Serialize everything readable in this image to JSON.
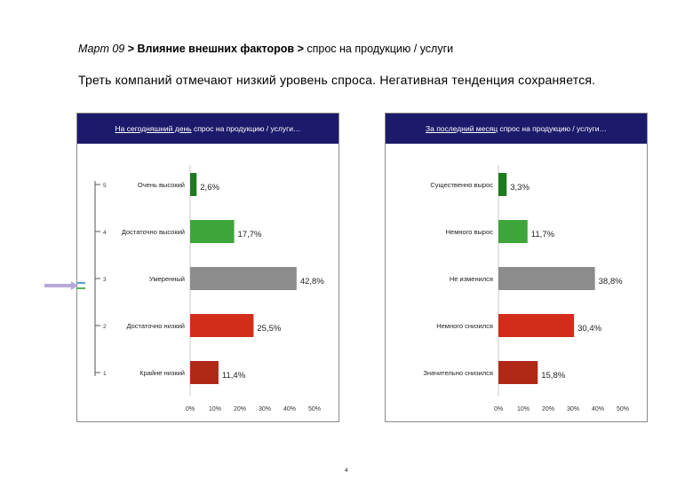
{
  "header": {
    "crumb_date": "Март 09",
    "crumb_sep1": ">",
    "crumb_section": "Влияние внешних факторов",
    "crumb_sep2": ">",
    "crumb_topic": "спрос на продукцию / услуги",
    "subtitle": "Треть компаний отмечают низкий уровень спроса. Негативная тенденция сохраняется."
  },
  "page_number": "4",
  "chart_data": [
    {
      "type": "bar",
      "orientation": "horizontal",
      "title_underlined": "На сегодняшний день",
      "title_rest": " спрос на продукцию / услуги…",
      "categories": [
        "Очень высокий",
        "Достаточно высокий",
        "Умеренный",
        "Достаточно низкий",
        "Крайне низкий"
      ],
      "scale_labels": [
        "5",
        "4",
        "3",
        "2",
        "1"
      ],
      "values": [
        2.6,
        17.7,
        42.8,
        25.5,
        11.4
      ],
      "value_labels": [
        "2,6%",
        "17,7%",
        "42,8%",
        "25,5%",
        "11,4%"
      ],
      "colors": [
        "#1e7a1e",
        "#3ea53a",
        "#8c8c8c",
        "#d22d1a",
        "#b02816"
      ],
      "xlim": [
        0,
        50
      ],
      "xticks": [
        "0%",
        "10%",
        "20%",
        "30%",
        "40%",
        "50%"
      ],
      "grid": false
    },
    {
      "type": "bar",
      "orientation": "horizontal",
      "title_underlined": "За последний месяц",
      "title_rest": " спрос на продукцию / услуги…",
      "categories": [
        "Существенно вырос",
        "Немного вырос",
        "Не изменился",
        "Немного снизился",
        "Значительно снизился"
      ],
      "values": [
        3.3,
        11.7,
        38.8,
        30.4,
        15.8
      ],
      "value_labels": [
        "3,3%",
        "11,7%",
        "38,8%",
        "30,4%",
        "15,8%"
      ],
      "colors": [
        "#1e7a1e",
        "#3ea53a",
        "#8c8c8c",
        "#d22d1a",
        "#b02816"
      ],
      "xlim": [
        0,
        50
      ],
      "xticks": [
        "0%",
        "10%",
        "20%",
        "30%",
        "40%",
        "50%"
      ],
      "grid": false
    }
  ]
}
